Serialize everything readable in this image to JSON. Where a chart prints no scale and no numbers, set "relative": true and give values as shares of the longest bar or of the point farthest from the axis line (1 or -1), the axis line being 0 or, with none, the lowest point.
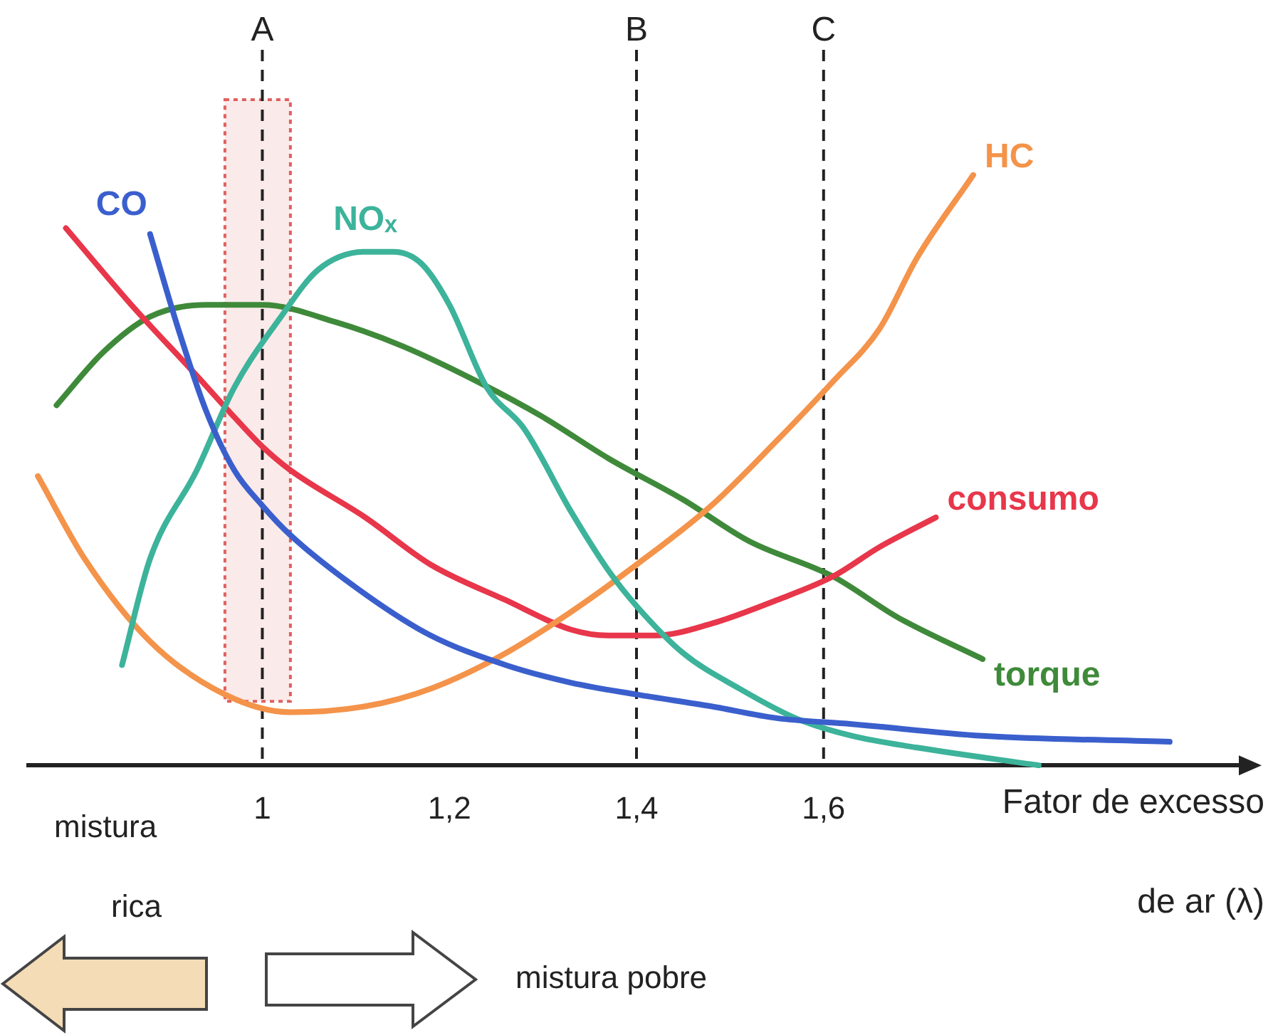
{
  "chart_data": {
    "type": "line",
    "relative": true,
    "xlabel": "Fator de excesso de ar (λ)",
    "xlim": [
      0.75,
      2.05
    ],
    "xticks": [
      1,
      {
        "value": 1.2,
        "label": "1,2"
      },
      {
        "value": 1.4,
        "label": "1,4"
      },
      {
        "value": 1.6,
        "label": "1,6"
      }
    ],
    "grid": false,
    "legend": false,
    "marker": "none",
    "line_style": "solid",
    "ref_lines": [
      {
        "axis": "x",
        "value": 1,
        "label": "A",
        "color": "#222222",
        "line_style": "dashed"
      },
      {
        "axis": "x",
        "value": 1.4,
        "label": "B",
        "color": "#222222",
        "line_style": "dashed"
      },
      {
        "axis": "x",
        "value": 1.6,
        "label": "C",
        "color": "#222222",
        "line_style": "dashed"
      }
    ],
    "bands": [
      {
        "axis": "x",
        "from": 0.96,
        "to": 1.03,
        "color": "#e06060"
      }
    ],
    "annotations": [
      "mistura",
      "rica",
      "mistura pobre"
    ],
    "series": [
      {
        "name": "CO",
        "color": "#3a5fcd",
        "x": [
          0.88,
          0.91,
          0.94,
          0.97,
          1.0,
          1.03,
          1.11,
          1.18,
          1.26,
          1.33,
          1.4,
          1.48,
          1.55,
          1.63,
          1.77,
          1.97
        ],
        "values": [
          0.9,
          0.74,
          0.6,
          0.5,
          0.44,
          0.39,
          0.29,
          0.22,
          0.17,
          0.14,
          0.12,
          0.1,
          0.08,
          0.07,
          0.05,
          0.04
        ]
      },
      {
        "name": "NOₓ",
        "color": "#3cb39a",
        "x": [
          0.85,
          0.88,
          0.93,
          0.97,
          1.02,
          1.06,
          1.11,
          1.14,
          1.17,
          1.2,
          1.24,
          1.28,
          1.33,
          1.37,
          1.4,
          1.45,
          1.51,
          1.57,
          1.63,
          1.7,
          1.83
        ],
        "values": [
          0.17,
          0.35,
          0.5,
          0.64,
          0.76,
          0.84,
          0.87,
          0.87,
          0.85,
          0.78,
          0.64,
          0.57,
          0.43,
          0.33,
          0.27,
          0.19,
          0.13,
          0.08,
          0.05,
          0.03,
          0.0
        ]
      },
      {
        "name": "HC",
        "color": "#f4934a",
        "x": [
          0.76,
          0.81,
          0.88,
          0.96,
          1.03,
          1.11,
          1.18,
          1.26,
          1.33,
          1.4,
          1.48,
          1.55,
          1.61,
          1.66,
          1.7,
          1.76
        ],
        "values": [
          0.49,
          0.35,
          0.21,
          0.12,
          0.09,
          0.1,
          0.13,
          0.19,
          0.26,
          0.34,
          0.44,
          0.55,
          0.65,
          0.74,
          0.86,
          1
        ]
      },
      {
        "name": "consumo",
        "color": "#e8364a",
        "x": [
          0.79,
          0.86,
          0.93,
          0.97,
          1.0,
          1.03,
          1.11,
          1.18,
          1.26,
          1.33,
          1.37,
          1.42,
          1.48,
          1.55,
          1.61,
          1.66,
          1.72
        ],
        "values": [
          0.91,
          0.78,
          0.66,
          0.59,
          0.54,
          0.5,
          0.42,
          0.34,
          0.28,
          0.23,
          0.22,
          0.22,
          0.24,
          0.28,
          0.32,
          0.37,
          0.42
        ]
      },
      {
        "name": "torque",
        "color": "#3f8a3a",
        "x": [
          0.78,
          0.83,
          0.88,
          0.94,
          1.0,
          1.08,
          1.15,
          1.23,
          1.3,
          1.37,
          1.45,
          1.52,
          1.61,
          1.68,
          1.77
        ],
        "values": [
          0.61,
          0.7,
          0.76,
          0.78,
          0.78,
          0.75,
          0.71,
          0.65,
          0.59,
          0.52,
          0.45,
          0.38,
          0.32,
          0.25,
          0.18
        ]
      }
    ]
  }
}
